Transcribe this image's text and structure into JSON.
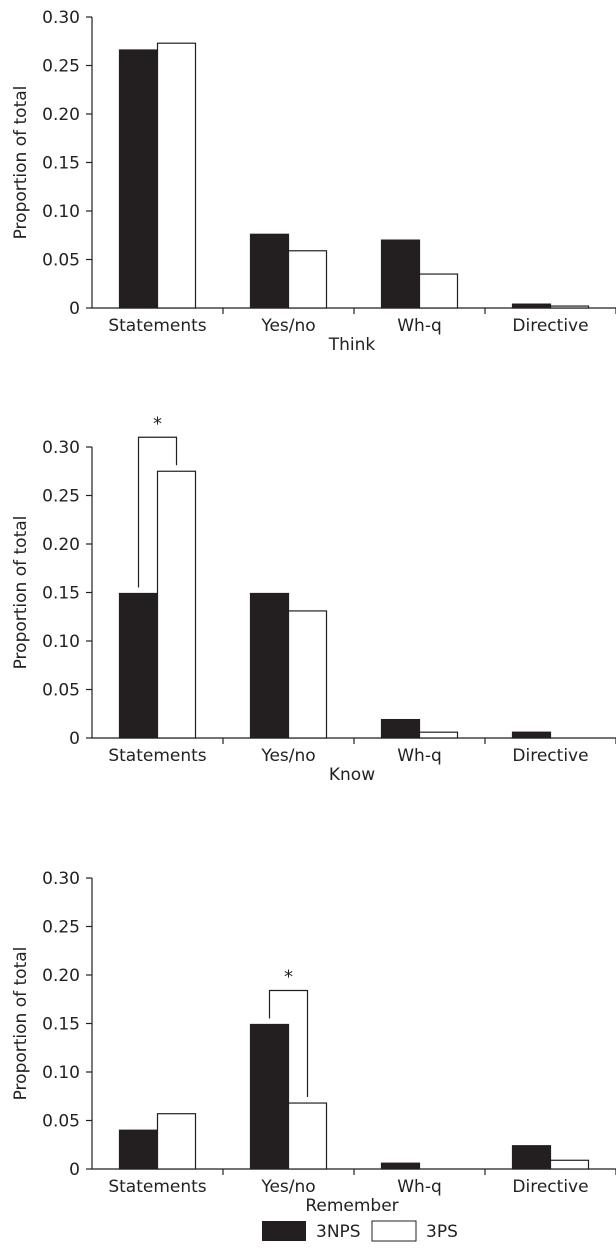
{
  "legend": {
    "placement": "bottom-center",
    "entries": [
      {
        "label": "3NPS",
        "color": "#231f20"
      },
      {
        "label": "3PS",
        "color": "#ffffff"
      }
    ]
  },
  "chart_data": [
    {
      "type": "bar",
      "title": "",
      "xlabel": "Think",
      "ylabel": "Proportion of total",
      "categories": [
        "Statements",
        "Yes/no",
        "Wh-q",
        "Directive"
      ],
      "ylim": [
        0,
        0.3
      ],
      "yticks": [
        "0.30",
        "0.25",
        "0.20",
        "0.15",
        "0.10",
        "0.05",
        "0"
      ],
      "series": [
        {
          "name": "3NPS",
          "color": "#231f20",
          "values": [
            0.266,
            0.076,
            0.07,
            0.004
          ]
        },
        {
          "name": "3PS",
          "color": "#ffffff",
          "values": [
            0.273,
            0.059,
            0.035,
            0.002
          ]
        }
      ],
      "significance": []
    },
    {
      "type": "bar",
      "title": "",
      "xlabel": "Know",
      "ylabel": "Proportion of total",
      "categories": [
        "Statements",
        "Yes/no",
        "Wh-q",
        "Directive"
      ],
      "ylim": [
        0,
        0.3
      ],
      "yticks": [
        "0.30",
        "0.25",
        "0.20",
        "0.15",
        "0.10",
        "0.05",
        "0"
      ],
      "series": [
        {
          "name": "3NPS",
          "color": "#231f20",
          "values": [
            0.149,
            0.149,
            0.019,
            0.006
          ]
        },
        {
          "name": "3PS",
          "color": "#ffffff",
          "values": [
            0.275,
            0.131,
            0.006,
            0.0
          ]
        }
      ],
      "significance": [
        {
          "category": 0,
          "label": "*"
        }
      ]
    },
    {
      "type": "bar",
      "title": "",
      "xlabel": "Remember",
      "ylabel": "Proportion  of total",
      "categories": [
        "Statements",
        "Yes/no",
        "Wh-q",
        "Directive"
      ],
      "ylim": [
        0,
        0.3
      ],
      "yticks": [
        "0.30",
        "0.25",
        "0.20",
        "0.15",
        "0.10",
        "0.05",
        "0"
      ],
      "series": [
        {
          "name": "3NPS",
          "color": "#231f20",
          "values": [
            0.04,
            0.149,
            0.006,
            0.024
          ]
        },
        {
          "name": "3PS",
          "color": "#ffffff",
          "values": [
            0.057,
            0.068,
            0.0,
            0.009
          ]
        }
      ],
      "significance": [
        {
          "category": 1,
          "label": "*"
        }
      ]
    }
  ]
}
